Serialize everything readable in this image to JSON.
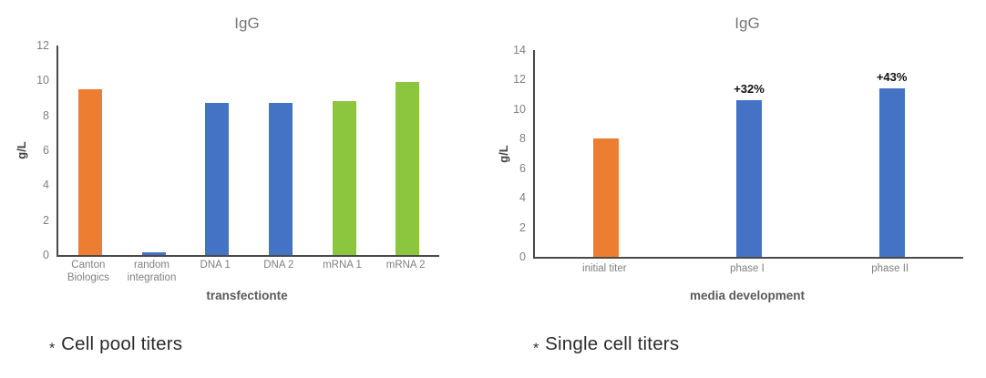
{
  "page": {
    "background": "#ffffff"
  },
  "chart_data": [
    {
      "type": "bar",
      "title": "IgG",
      "ylabel": "g/L",
      "xlabel": "transfectionte",
      "ylim": [
        0,
        12
      ],
      "yticks": [
        0,
        2,
        4,
        6,
        8,
        10,
        12
      ],
      "grid": "off",
      "legend": "none",
      "categories": [
        "Canton Biologics",
        "random integration",
        "DNA 1",
        "DNA 2",
        "mRNA 1",
        "mRNA 2"
      ],
      "values": [
        9.5,
        0.15,
        8.7,
        8.7,
        8.8,
        9.9
      ],
      "bar_labels": [
        "",
        "",
        "",
        "",
        "",
        ""
      ],
      "colors": [
        "#ED7D31",
        "#4472C4",
        "#4472C4",
        "#4472C4",
        "#8CC63F",
        "#8CC63F"
      ],
      "caption": {
        "marker": "*",
        "text": "Cell pool titers"
      }
    },
    {
      "type": "bar",
      "title": "IgG",
      "ylabel": "g/L",
      "xlabel": "media development",
      "ylim": [
        0,
        14
      ],
      "yticks": [
        0,
        2,
        4,
        6,
        8,
        10,
        12,
        14
      ],
      "grid": "off",
      "legend": "none",
      "categories": [
        "initial titer",
        "phase I",
        "phase II"
      ],
      "values": [
        8.0,
        10.6,
        11.4
      ],
      "bar_labels": [
        "",
        "+32%",
        "+43%"
      ],
      "colors": [
        "#ED7D31",
        "#4472C4",
        "#4472C4"
      ],
      "caption": {
        "marker": "*",
        "text": "Single cell titers"
      }
    }
  ]
}
